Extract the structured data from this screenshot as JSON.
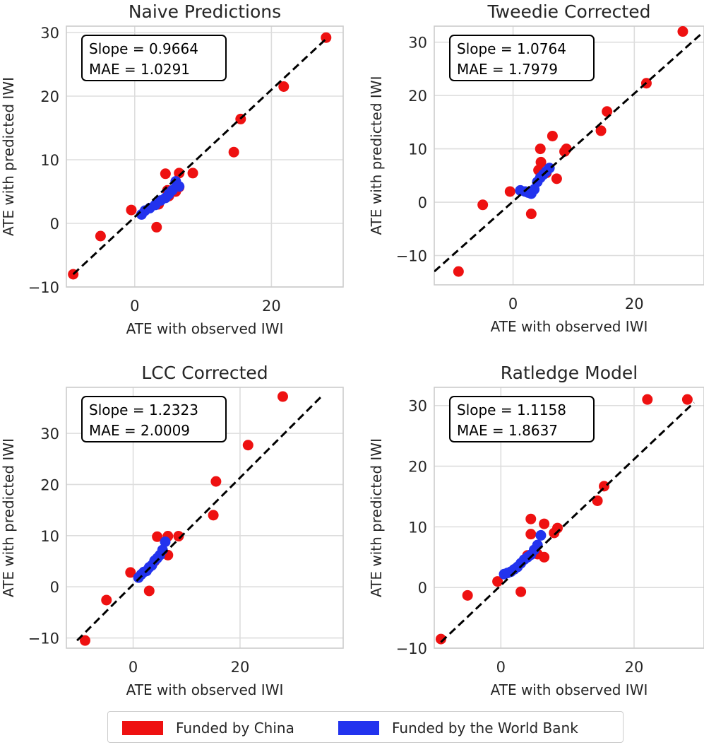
{
  "colors": {
    "china": "#ee1111",
    "world_bank": "#2233ee",
    "grid": "#dddddd",
    "spine": "#cccccc",
    "text": "#262626"
  },
  "legend": {
    "china_label": "Funded by China",
    "world_bank_label": "Funded by the World Bank"
  },
  "chart_data": [
    {
      "type": "scatter",
      "title": "Naive Predictions",
      "xlabel": "ATE with observed IWI",
      "ylabel": "ATE with predicted IWI",
      "xlim": [
        -10,
        30.5
      ],
      "ylim": [
        -10,
        31
      ],
      "xticks": [
        0,
        20
      ],
      "yticks": [
        -10,
        0,
        10,
        20,
        30
      ],
      "annotation": [
        "Slope = 0.9664",
        "MAE = 1.0291"
      ],
      "fit_line": {
        "x": [
          -9,
          28
        ],
        "y": [
          -8,
          29
        ]
      },
      "series": [
        {
          "name": "Funded by China",
          "x": [
            -9,
            -5,
            -0.5,
            3.2,
            4.5,
            6.5,
            4.8,
            6.5,
            8.5,
            6.0,
            5.0,
            3.5,
            14.5,
            15.5,
            21.8,
            28.0
          ],
          "y": [
            -8,
            -2,
            2.1,
            -0.6,
            7.8,
            7.9,
            5.2,
            5.7,
            7.9,
            5.0,
            4.3,
            3.0,
            11.2,
            16.4,
            21.5,
            29.2
          ]
        },
        {
          "name": "Funded by the World Bank",
          "x": [
            1.0,
            1.5,
            2.2,
            3.0,
            3.8,
            4.5,
            5.0,
            5.5,
            6.0,
            6.5
          ],
          "y": [
            1.4,
            2.0,
            2.4,
            2.9,
            3.6,
            4.0,
            4.6,
            5.2,
            6.6,
            5.8
          ]
        }
      ]
    },
    {
      "type": "scatter",
      "title": "Tweedie Corrected",
      "xlabel": "ATE with observed IWI",
      "ylabel": "ATE with predicted IWI",
      "xlim": [
        -13,
        31.5
      ],
      "ylim": [
        -15.5,
        33
      ],
      "xticks": [
        0,
        20
      ],
      "yticks": [
        -10,
        0,
        10,
        20,
        30
      ],
      "annotation": [
        "Slope = 1.0764",
        "MAE = 1.7979"
      ],
      "fit_line": {
        "x": [
          -13,
          31
        ],
        "y": [
          -13,
          31.5
        ]
      },
      "series": [
        {
          "name": "Funded by China",
          "x": [
            -9,
            -5,
            -0.5,
            3.0,
            4.5,
            4.6,
            6.5,
            7.2,
            8.5,
            8.8,
            4.2,
            5.5,
            14.5,
            15.5,
            22.0,
            28.0
          ],
          "y": [
            -13,
            -0.5,
            2.0,
            -2.2,
            10.0,
            7.5,
            12.4,
            4.4,
            9.5,
            10.0,
            6.0,
            5.5,
            13.4,
            17.0,
            22.3,
            32.0
          ]
        },
        {
          "name": "Funded by the World Bank",
          "x": [
            1.2,
            2.0,
            2.5,
            3.0,
            3.5,
            4.0,
            4.5,
            5.0,
            5.5,
            6.0
          ],
          "y": [
            2.2,
            2.0,
            1.8,
            1.6,
            2.4,
            3.8,
            4.6,
            5.2,
            5.8,
            6.4
          ]
        }
      ]
    },
    {
      "type": "scatter",
      "title": "LCC Corrected",
      "xlabel": "ATE with observed IWI",
      "ylabel": "ATE with predicted IWI",
      "xlim": [
        -12.5,
        39.3
      ],
      "ylim": [
        -12,
        39
      ],
      "xticks": [
        0,
        20
      ],
      "yticks": [
        -10,
        0,
        10,
        20,
        30
      ],
      "annotation": [
        "Slope = 1.2323",
        "MAE = 2.0009"
      ],
      "fit_line": {
        "x": [
          -10.5,
          35.5
        ],
        "y": [
          -10.5,
          37.5
        ]
      },
      "series": [
        {
          "name": "Funded by China",
          "x": [
            -9,
            -5,
            -0.5,
            3.0,
            4.5,
            6.5,
            8.5,
            6.5,
            5.5,
            4.0,
            15.0,
            15.5,
            21.5,
            28.0
          ],
          "y": [
            -10.5,
            -2.6,
            2.8,
            -0.8,
            9.8,
            9.9,
            9.9,
            6.2,
            6.5,
            5.0,
            14.0,
            20.6,
            27.7,
            37.2
          ]
        },
        {
          "name": "Funded by the World Bank",
          "x": [
            1.0,
            1.5,
            2.0,
            2.5,
            3.0,
            3.5,
            4.0,
            4.5,
            5.0,
            5.5,
            6.0
          ],
          "y": [
            1.8,
            2.4,
            2.9,
            3.1,
            3.8,
            4.2,
            5.1,
            5.6,
            6.2,
            7.2,
            8.8
          ]
        }
      ]
    },
    {
      "type": "scatter",
      "title": "Ratledge Model",
      "xlabel": "ATE with observed IWI",
      "ylabel": "ATE with predicted IWI",
      "xlim": [
        -10,
        30.5
      ],
      "ylim": [
        -10,
        33
      ],
      "xticks": [
        0,
        20
      ],
      "yticks": [
        -10,
        0,
        10,
        20,
        30
      ],
      "annotation": [
        "Slope = 1.1158",
        "MAE = 1.8637"
      ],
      "fit_line": {
        "x": [
          -9,
          29
        ],
        "y": [
          -9,
          30.5
        ]
      },
      "series": [
        {
          "name": "Funded by China",
          "x": [
            -9,
            -5,
            -0.5,
            3.0,
            4.5,
            4.5,
            6.5,
            8.5,
            8.0,
            6.5,
            4.0,
            5.5,
            14.5,
            15.5,
            22.0,
            28.0
          ],
          "y": [
            -8.5,
            -1.3,
            1.0,
            -0.7,
            11.3,
            8.8,
            10.5,
            9.8,
            9.0,
            5.0,
            5.3,
            5.5,
            14.3,
            16.7,
            31.0,
            31.0
          ]
        },
        {
          "name": "Funded by the World Bank",
          "x": [
            0.5,
            1.0,
            1.5,
            2.0,
            2.5,
            3.0,
            3.5,
            4.0,
            4.5,
            5.0,
            5.5,
            6.0
          ],
          "y": [
            2.2,
            2.4,
            2.6,
            3.0,
            3.4,
            4.0,
            4.6,
            5.0,
            5.4,
            6.2,
            7.0,
            8.6
          ]
        }
      ]
    }
  ]
}
